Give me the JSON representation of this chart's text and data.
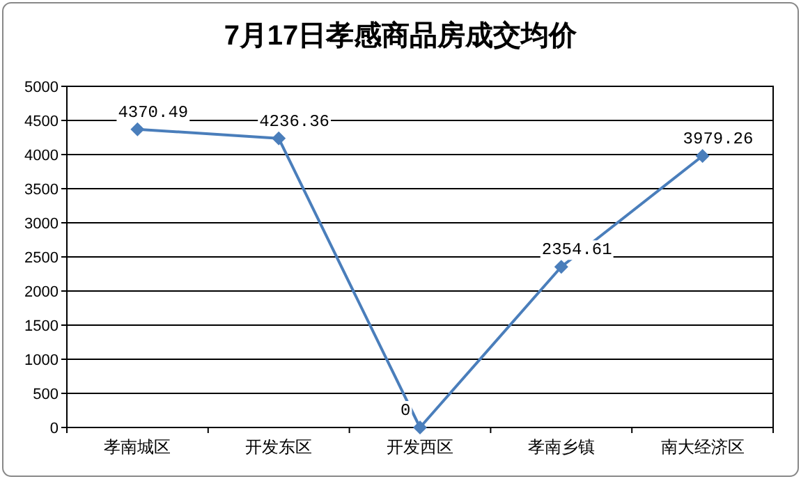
{
  "chart_data": {
    "type": "line",
    "title": "7月17日孝感商品房成交均价",
    "categories": [
      "孝南城区",
      "开发东区",
      "开发西区",
      "孝南乡镇",
      "南大经济区"
    ],
    "values": [
      4370.49,
      4236.36,
      0,
      2354.61,
      3979.26
    ],
    "color": "#4a7ebb",
    "ylim": [
      0,
      5000
    ],
    "yticks": [
      0,
      500,
      1000,
      1500,
      2000,
      2500,
      3000,
      3500,
      4000,
      4500,
      5000
    ],
    "grid": "y",
    "marker": "diamond",
    "data_labels": true
  }
}
